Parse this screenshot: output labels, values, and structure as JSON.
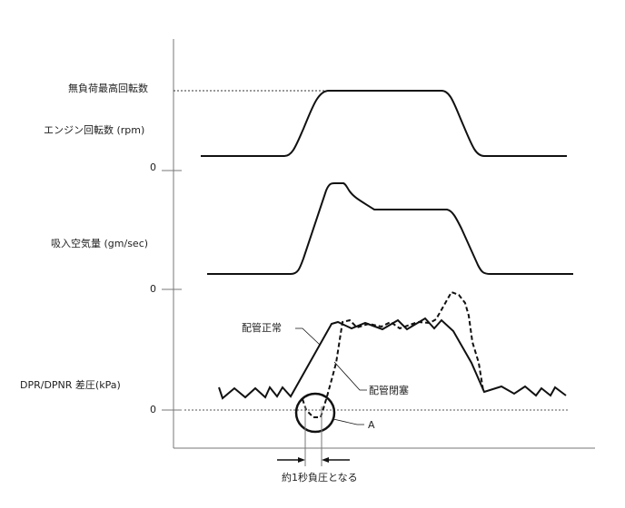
{
  "labels": {
    "max_rpm": "無負荷最高回転数",
    "engine_rpm": "エンジン回転数 (rpm)",
    "zero_rpm": "0",
    "intake_air": "吸入空気量 (gm/sec)",
    "zero_air": "0",
    "pressure": "DPR/DPNR 差圧(kPa)",
    "zero_pressure": "0",
    "pipe_normal": "配管正常",
    "pipe_blocked": "配管閉塞",
    "marker_a": "A",
    "negative_note": "約1秒負圧となる"
  },
  "colors": {
    "line": "#111111",
    "axis": "#666666"
  }
}
